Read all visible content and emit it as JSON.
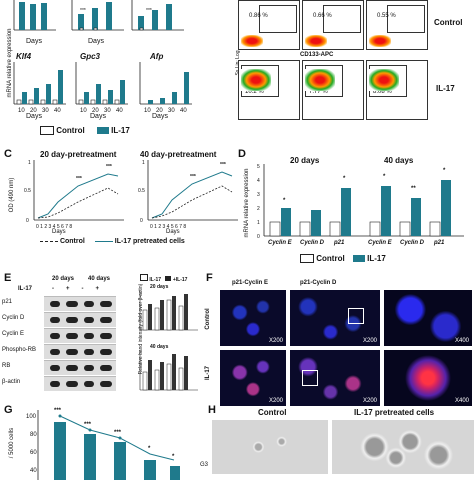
{
  "panelA": {
    "ylabel": "mRNA relative expression",
    "days_label": "Days",
    "genes": [
      "Klf4",
      "Gpc3",
      "Afp"
    ],
    "x_ticks": [
      "10",
      "20",
      "30",
      "40"
    ],
    "legend": [
      "Control",
      "IL-17"
    ],
    "sig": {
      "top_left": "***",
      "top_mid": "***",
      "top_mid2": "*"
    }
  },
  "panelB": {
    "yaxis": "Ss Lin: Log",
    "xaxis": "CD133-APC",
    "rows": [
      "Control",
      "IL-17"
    ],
    "control_percents": [
      "0.86 %",
      "0.66 %",
      "0.55 %"
    ],
    "il17_percents": [
      "10.2 %",
      "7.77 %",
      "8.08 %"
    ]
  },
  "panelC": {
    "letter": "C",
    "titles": [
      "20 day-pretreatment",
      "40 day-pretreatment"
    ],
    "ylabel": "OD (490 nm)",
    "xlabel": "Days",
    "y_ticks": [
      "0",
      "0.5",
      "1"
    ],
    "x_ticks": [
      "0",
      "1",
      "2",
      "3",
      "4",
      "5",
      "6",
      "7",
      "8"
    ],
    "legend": [
      "Control",
      "IL-17 pretreated cells"
    ],
    "stars": "***"
  },
  "panelD": {
    "letter": "D",
    "titles": [
      "20 days",
      "40 days"
    ],
    "ylabel": "mRNA relative expression",
    "y_ticks": [
      "0",
      "1",
      "2",
      "3",
      "4",
      "5"
    ],
    "genes": [
      "Cyclin E",
      "Cyclin D",
      "p21"
    ],
    "legend": [
      "Control",
      "IL-17"
    ],
    "sig20": [
      "*",
      "",
      "*"
    ],
    "sig40": [
      "*",
      "**",
      "*"
    ]
  },
  "panelE": {
    "letter": "E",
    "headers": [
      "20 days",
      "40 days"
    ],
    "il17": "IL-17",
    "signs": [
      "-",
      "+",
      "-",
      "+"
    ],
    "proteins": [
      "p21",
      "Cyclin D",
      "Cyclin E",
      "Phospho-RB",
      "RB",
      "β-actin"
    ],
    "legend": [
      "IL-17",
      "+IL-17"
    ],
    "ylabel": "Relative band intensity (fold over β-actin)",
    "sub": [
      "20 days",
      "40 days"
    ]
  },
  "panelF": {
    "letter": "F",
    "cols": [
      "p21-Cyclin E",
      "p21-Cyclin D"
    ],
    "rows": [
      "Control",
      "IL-17"
    ],
    "mags": [
      "X200",
      "X200",
      "X400",
      "X200",
      "X200",
      "X400"
    ]
  },
  "panelG": {
    "letter": "G",
    "ylabel": "/ 5000 cells",
    "y_ticks": [
      "40",
      "60",
      "80",
      "100"
    ],
    "stars": [
      "***",
      "***",
      "***",
      "*",
      "*"
    ],
    "bottom": "G3"
  },
  "panelH": {
    "letter": "H",
    "labels": [
      "Control",
      "IL-17 pretreated cells"
    ]
  },
  "colors": {
    "teal": "#1f7a8c",
    "dark": "#222222"
  }
}
